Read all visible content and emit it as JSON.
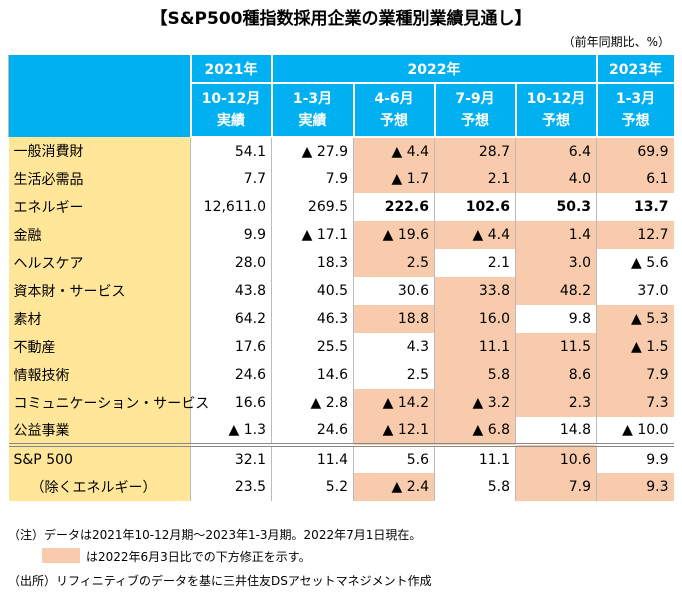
{
  "title": "【S&P500種指数採用企業の業種別業績見通し】",
  "unit": "（前年同期比、%）",
  "header": {
    "years": [
      {
        "text": "2021年",
        "span": 1
      },
      {
        "text": "2022年",
        "span": 4
      },
      {
        "text": "2023年",
        "span": 1
      }
    ],
    "periods": [
      [
        "10-12月",
        "実績"
      ],
      [
        "1-3月",
        "実績"
      ],
      [
        "4-6月",
        "予想"
      ],
      [
        "7-9月",
        "予想"
      ],
      [
        "10-12月",
        "予想"
      ],
      [
        "1-3月",
        "予想"
      ]
    ]
  },
  "table": {
    "rows": [
      {
        "label": "一般消費財",
        "cells": [
          "54.1",
          "▲ 27.9",
          "▲ 4.4",
          "28.7",
          "6.4",
          "69.9"
        ],
        "revised": [
          false,
          false,
          true,
          true,
          true,
          true
        ],
        "bold": false
      },
      {
        "label": "生活必需品",
        "cells": [
          "7.7",
          "7.9",
          "▲ 1.7",
          "2.1",
          "4.0",
          "6.1"
        ],
        "revised": [
          false,
          false,
          true,
          true,
          true,
          true
        ],
        "bold": false
      },
      {
        "label": "エネルギー",
        "cells": [
          "12,611.0",
          "269.5",
          "222.6",
          "102.6",
          "50.3",
          "13.7"
        ],
        "revised": [
          false,
          false,
          false,
          false,
          false,
          false
        ],
        "bold": true
      },
      {
        "label": "金融",
        "cells": [
          "9.9",
          "▲ 17.1",
          "▲ 19.6",
          "▲ 4.4",
          "1.4",
          "12.7"
        ],
        "revised": [
          false,
          false,
          true,
          true,
          true,
          true
        ],
        "bold": false
      },
      {
        "label": "ヘルスケア",
        "cells": [
          "28.0",
          "18.3",
          "2.5",
          "2.1",
          "3.0",
          "▲ 5.6"
        ],
        "revised": [
          false,
          false,
          true,
          false,
          true,
          false
        ],
        "bold": false
      },
      {
        "label": "資本財・サービス",
        "cells": [
          "43.8",
          "40.5",
          "30.6",
          "33.8",
          "48.2",
          "37.0"
        ],
        "revised": [
          false,
          false,
          false,
          true,
          true,
          false
        ],
        "bold": false
      },
      {
        "label": "素材",
        "cells": [
          "64.2",
          "46.3",
          "18.8",
          "16.0",
          "9.8",
          "▲ 5.3"
        ],
        "revised": [
          false,
          false,
          true,
          true,
          false,
          true
        ],
        "bold": false
      },
      {
        "label": "不動産",
        "cells": [
          "17.6",
          "25.5",
          "4.3",
          "11.1",
          "11.5",
          "▲ 1.5"
        ],
        "revised": [
          false,
          false,
          false,
          true,
          true,
          true
        ],
        "bold": false
      },
      {
        "label": "情報技術",
        "cells": [
          "24.6",
          "14.6",
          "2.5",
          "5.8",
          "8.6",
          "7.9"
        ],
        "revised": [
          false,
          false,
          false,
          true,
          true,
          true
        ],
        "bold": false
      },
      {
        "label": "コミュニケーション・サービス",
        "cells": [
          "16.6",
          "▲ 2.8",
          "▲ 14.2",
          "▲ 3.2",
          "2.3",
          "7.3"
        ],
        "revised": [
          false,
          false,
          true,
          true,
          true,
          true
        ],
        "bold": false
      },
      {
        "label": "公益事業",
        "cells": [
          "▲ 1.3",
          "24.6",
          "▲ 12.1",
          "▲ 6.8",
          "14.8",
          "▲ 10.0"
        ],
        "revised": [
          false,
          false,
          true,
          true,
          false,
          false
        ],
        "bold": false
      },
      {
        "label": "S&P 500",
        "cells": [
          "32.1",
          "11.4",
          "5.6",
          "11.1",
          "10.6",
          "9.9"
        ],
        "revised": [
          false,
          false,
          false,
          false,
          true,
          false
        ],
        "bold": false
      },
      {
        "label": "（除くエネルギー）",
        "cells": [
          "23.5",
          "5.2",
          "▲ 2.4",
          "5.8",
          "7.9",
          "9.3"
        ],
        "revised": [
          false,
          false,
          true,
          false,
          true,
          true
        ],
        "bold": false
      }
    ]
  },
  "notes": {
    "note": "（注）データは2021年10-12月期～2023年1-3月期。2022年7月1日現在。",
    "legend": "は2022年6月3日比での下方修正を示す。",
    "source": "（出所）リフィニティブのデータを基に三井住友DSアセットマネジメント作成"
  }
}
